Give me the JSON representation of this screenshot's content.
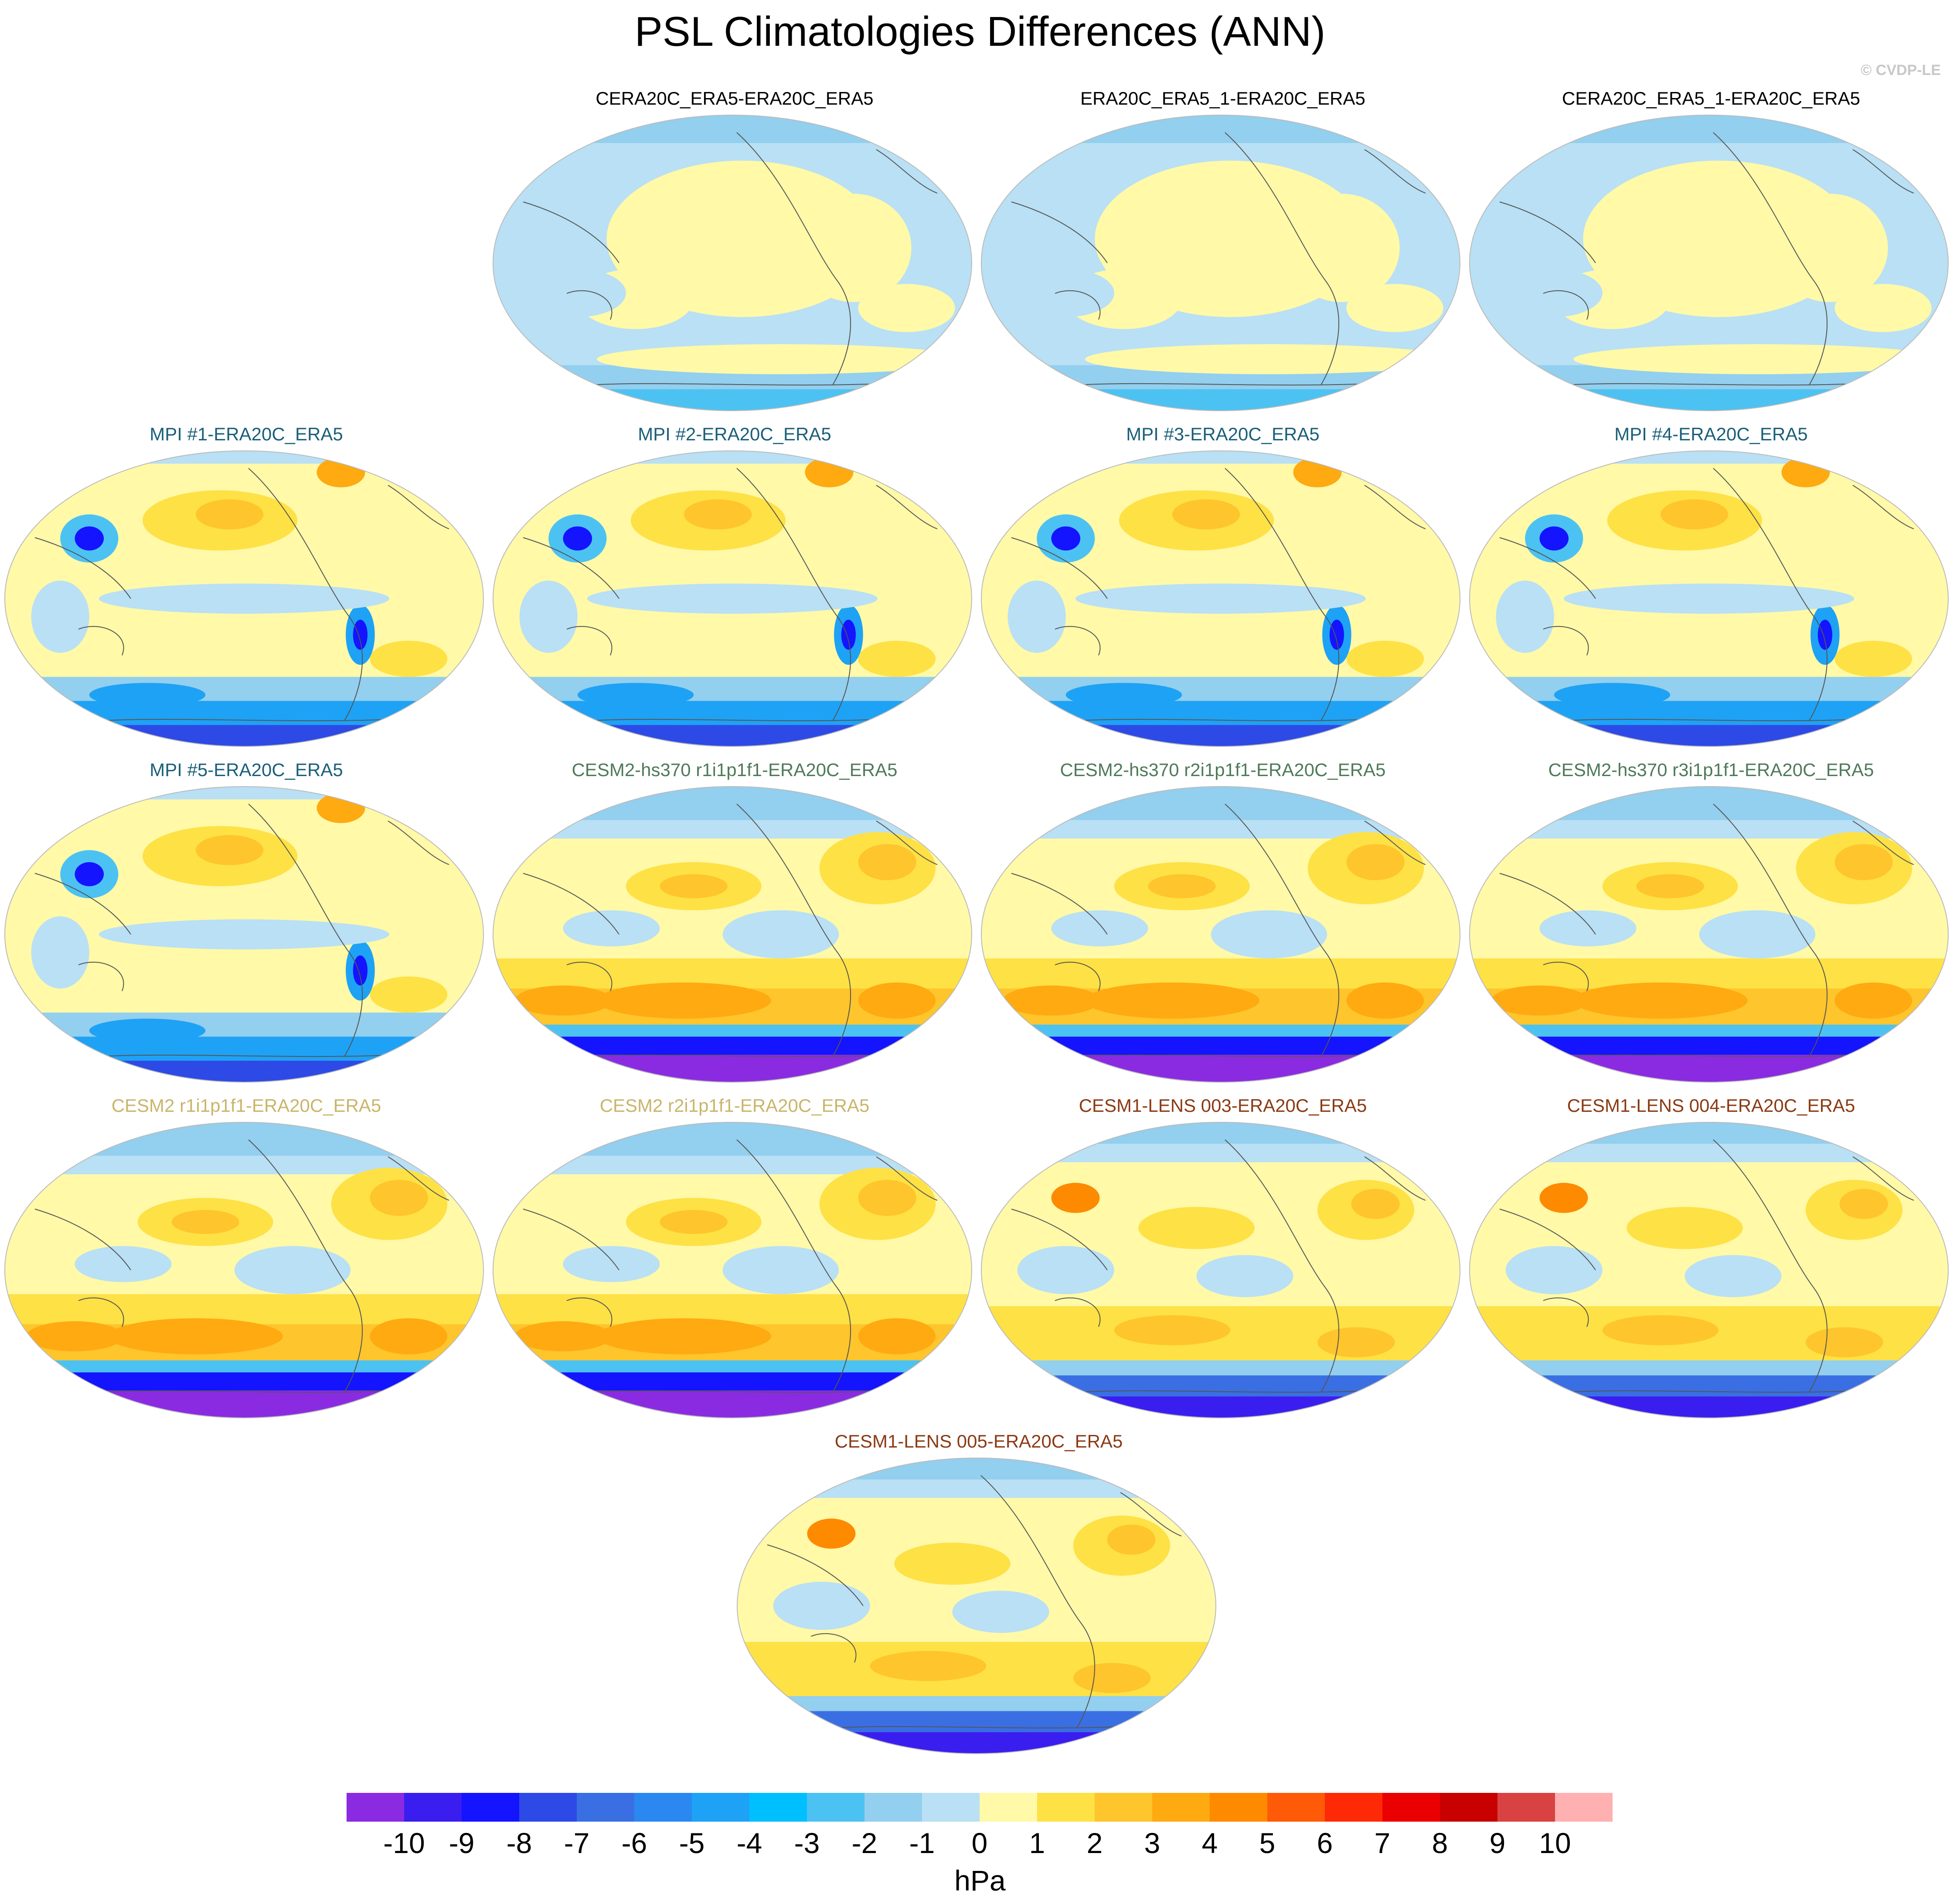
{
  "title": "PSL Climatologies Differences (ANN)",
  "watermark": "© CVDP-LE",
  "panels": [
    {
      "title": "CERA20C_ERA5-ERA20C_ERA5",
      "group": "obs",
      "pattern": "obs"
    },
    {
      "title": "ERA20C_ERA5_1-ERA20C_ERA5",
      "group": "obs",
      "pattern": "obs"
    },
    {
      "title": "CERA20C_ERA5_1-ERA20C_ERA5",
      "group": "obs",
      "pattern": "obs"
    },
    {
      "title": "MPI #1-ERA20C_ERA5",
      "group": "mpi",
      "pattern": "mpi"
    },
    {
      "title": "MPI #2-ERA20C_ERA5",
      "group": "mpi",
      "pattern": "mpi"
    },
    {
      "title": "MPI #3-ERA20C_ERA5",
      "group": "mpi",
      "pattern": "mpi"
    },
    {
      "title": "MPI #4-ERA20C_ERA5",
      "group": "mpi",
      "pattern": "mpi"
    },
    {
      "title": "MPI #5-ERA20C_ERA5",
      "group": "mpi",
      "pattern": "mpi"
    },
    {
      "title": "CESM2-hs370 r1i1p1f1-ERA20C_ERA5",
      "group": "hs",
      "pattern": "cesm2"
    },
    {
      "title": "CESM2-hs370 r2i1p1f1-ERA20C_ERA5",
      "group": "hs",
      "pattern": "cesm2"
    },
    {
      "title": "CESM2-hs370 r3i1p1f1-ERA20C_ERA5",
      "group": "hs",
      "pattern": "cesm2"
    },
    {
      "title": "CESM2 r1i1p1f1-ERA20C_ERA5",
      "group": "cesm2",
      "pattern": "cesm2"
    },
    {
      "title": "CESM2 r2i1p1f1-ERA20C_ERA5",
      "group": "cesm2",
      "pattern": "cesm2"
    },
    {
      "title": "CESM1-LENS 003-ERA20C_ERA5",
      "group": "lens",
      "pattern": "lens"
    },
    {
      "title": "CESM1-LENS 004-ERA20C_ERA5",
      "group": "lens",
      "pattern": "lens"
    },
    {
      "title": "CESM1-LENS 005-ERA20C_ERA5",
      "group": "lens",
      "pattern": "lens"
    }
  ],
  "colorbar": {
    "units": "hPa",
    "labels": [
      "-10",
      "-9",
      "-8",
      "-7",
      "-6",
      "-5",
      "-4",
      "-3",
      "-2",
      "-1",
      "0",
      "1",
      "2",
      "3",
      "4",
      "5",
      "6",
      "7",
      "8",
      "9",
      "10"
    ],
    "colors": [
      "#8a2be2",
      "#3a1ef0",
      "#1414ff",
      "#2d4ae6",
      "#3a6fe4",
      "#2b88f0",
      "#1ea2f5",
      "#00bfff",
      "#4cc2f2",
      "#93cfee",
      "#b9e0f4",
      "#fff9a8",
      "#fee145",
      "#fec52c",
      "#feaa10",
      "#fe8a00",
      "#fe5a08",
      "#fe2a06",
      "#ea0000",
      "#c80000",
      "#d94242",
      "#ffb0b0"
    ]
  }
}
